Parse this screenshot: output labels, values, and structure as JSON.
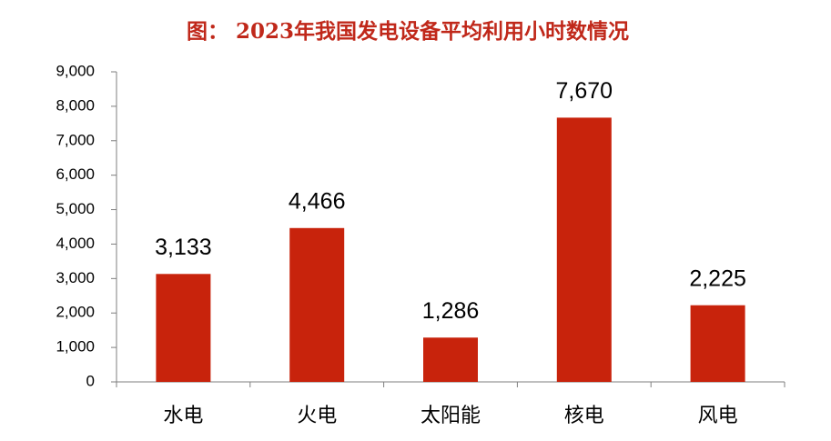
{
  "chart_data": {
    "type": "bar",
    "title": "图： 2023年我国发电设备平均利用小时数情况",
    "categories": [
      "水电",
      "火电",
      "太阳能",
      "核电",
      "风电"
    ],
    "values": [
      3133,
      4466,
      1286,
      7670,
      2225
    ],
    "value_labels": [
      "3,133",
      "4,466",
      "1,286",
      "7,670",
      "2,225"
    ],
    "color": "#c8230c",
    "ylim": [
      0,
      9000
    ],
    "yticks": [
      0,
      {
        "value": 1000,
        "label": "1,000"
      },
      {
        "value": 2000,
        "label": "2,000"
      },
      {
        "value": 3000,
        "label": "3,000"
      },
      {
        "value": 4000,
        "label": "4,000"
      },
      {
        "value": 5000,
        "label": "5,000"
      },
      {
        "value": 6000,
        "label": "6,000"
      },
      {
        "value": 7000,
        "label": "7,000"
      },
      {
        "value": 8000,
        "label": "8,000"
      },
      {
        "value": 9000,
        "label": "9,000"
      }
    ],
    "grid": false
  }
}
